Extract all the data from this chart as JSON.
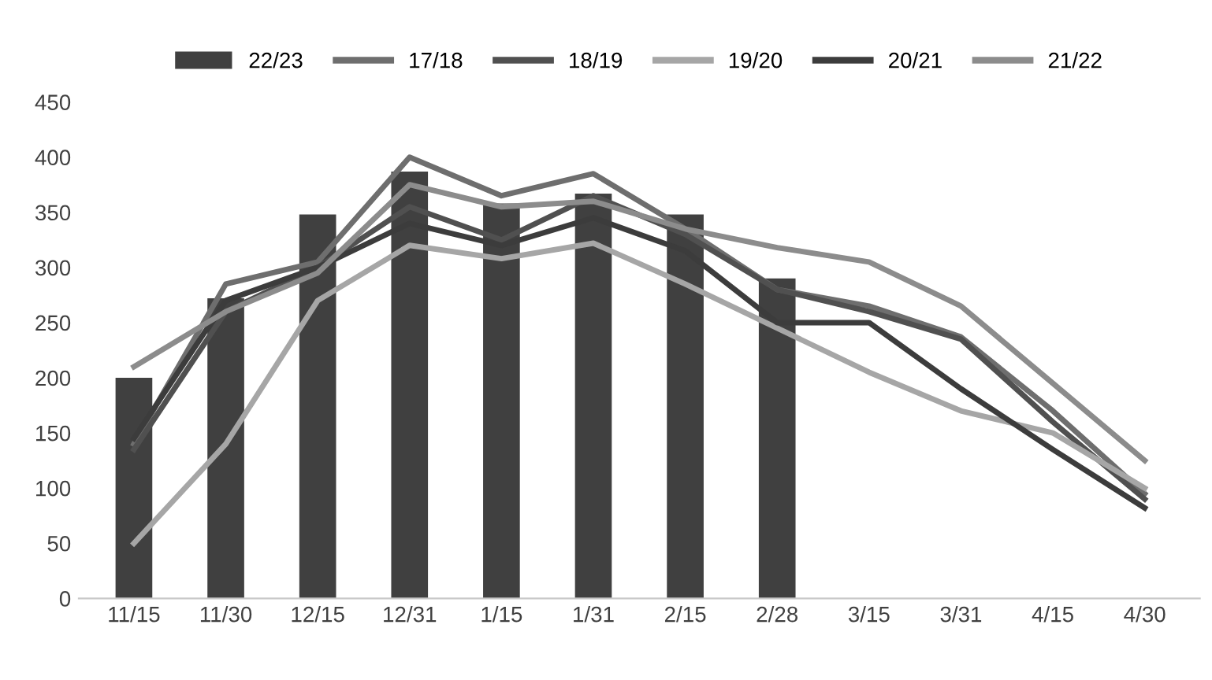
{
  "chart_data": {
    "type": "bar",
    "categories": [
      "11/15",
      "11/30",
      "12/15",
      "12/31",
      "1/15",
      "1/31",
      "2/15",
      "2/28",
      "3/15",
      "3/31",
      "4/15",
      "4/30"
    ],
    "series": [
      {
        "name": "22/23",
        "color": "#404040",
        "values": [
          200,
          272,
          348,
          387,
          358,
          367,
          348,
          290,
          null,
          null,
          null,
          null
        ]
      },
      {
        "name": "17/18",
        "type": "line",
        "color": "#6e6e6e",
        "values": [
          140,
          285,
          305,
          400,
          365,
          385,
          335,
          280,
          265,
          237,
          170,
          95
        ]
      },
      {
        "name": "18/19",
        "type": "line",
        "color": "#505050",
        "values": [
          135,
          260,
          300,
          355,
          325,
          365,
          330,
          280,
          260,
          235,
          160,
          90
        ]
      },
      {
        "name": "19/20",
        "type": "line",
        "color": "#a6a6a6",
        "values": [
          50,
          140,
          270,
          320,
          308,
          322,
          285,
          245,
          205,
          170,
          150,
          100
        ]
      },
      {
        "name": "20/21",
        "type": "line",
        "color": "#3c3c3c",
        "values": [
          145,
          270,
          300,
          340,
          320,
          345,
          315,
          250,
          250,
          190,
          135,
          82
        ]
      },
      {
        "name": "21/22",
        "type": "line",
        "color": "#8c8c8c",
        "values": [
          210,
          260,
          295,
          375,
          355,
          360,
          335,
          318,
          305,
          265,
          195,
          125
        ]
      }
    ],
    "ylim": [
      0,
      450
    ],
    "yticks": [
      0,
      50,
      100,
      150,
      200,
      250,
      300,
      350,
      400,
      450
    ],
    "grid": false,
    "legend": "top"
  }
}
